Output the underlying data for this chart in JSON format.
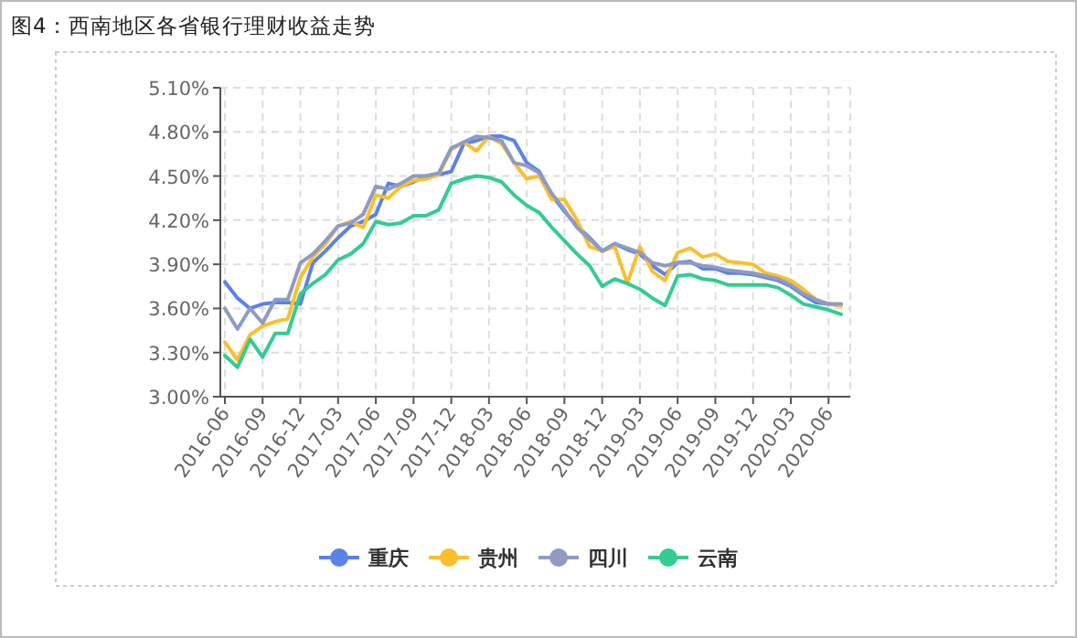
{
  "chart_data": {
    "type": "line",
    "title": "图4：西南地区各省银行理财收益走势",
    "categories": [
      "2016-06",
      null,
      null,
      "2016-09",
      null,
      null,
      "2016-12",
      null,
      null,
      "2017-03",
      null,
      null,
      "2017-06",
      null,
      null,
      "2017-09",
      null,
      null,
      "2017-12",
      null,
      null,
      "2018-03",
      null,
      null,
      "2018-06",
      null,
      null,
      "2018-09",
      null,
      null,
      "2018-12",
      null,
      null,
      "2019-03",
      null,
      null,
      "2019-06",
      null,
      null,
      "2019-09",
      null,
      null,
      "2019-12",
      null,
      null,
      "2020-03",
      null,
      null,
      "2020-06",
      null
    ],
    "series": [
      {
        "name": "重庆",
        "color": "#5b82e8",
        "values": [
          3.78,
          3.67,
          3.6,
          3.63,
          3.64,
          3.64,
          3.63,
          3.91,
          3.99,
          4.08,
          4.16,
          4.19,
          4.24,
          4.45,
          4.43,
          4.46,
          4.5,
          4.51,
          4.53,
          4.72,
          4.74,
          4.77,
          4.77,
          4.74,
          4.59,
          4.53,
          4.37,
          4.26,
          4.16,
          4.08,
          3.99,
          4.04,
          4.0,
          3.97,
          3.89,
          3.83,
          3.91,
          3.92,
          3.87,
          3.87,
          3.84,
          3.84,
          3.83,
          3.81,
          3.79,
          3.75,
          3.69,
          3.64,
          3.63,
          3.62
        ]
      },
      {
        "name": "贵州",
        "color": "#fbbf2c",
        "values": [
          3.37,
          3.25,
          3.42,
          3.48,
          3.51,
          3.53,
          3.81,
          3.95,
          4.04,
          4.16,
          4.19,
          4.15,
          4.37,
          4.35,
          4.43,
          4.47,
          4.48,
          4.51,
          4.68,
          4.73,
          4.67,
          4.77,
          4.72,
          4.59,
          4.48,
          4.5,
          4.34,
          4.34,
          4.2,
          4.02,
          3.99,
          4.02,
          3.77,
          4.02,
          3.85,
          3.79,
          3.98,
          4.01,
          3.95,
          3.97,
          3.92,
          3.91,
          3.9,
          3.84,
          3.82,
          3.79,
          3.73,
          3.66,
          3.63,
          3.62
        ]
      },
      {
        "name": "四川",
        "color": "#8e9bc4",
        "values": [
          3.6,
          3.46,
          3.6,
          3.5,
          3.66,
          3.66,
          3.91,
          3.97,
          4.06,
          4.16,
          4.18,
          4.24,
          4.43,
          4.41,
          4.45,
          4.5,
          4.5,
          4.52,
          4.69,
          4.73,
          4.77,
          4.76,
          4.74,
          4.59,
          4.57,
          4.52,
          4.38,
          4.27,
          4.15,
          4.07,
          3.99,
          4.04,
          4.01,
          3.98,
          3.91,
          3.89,
          3.91,
          3.91,
          3.89,
          3.88,
          3.86,
          3.85,
          3.84,
          3.82,
          3.8,
          3.76,
          3.7,
          3.66,
          3.63,
          3.63
        ]
      },
      {
        "name": "云南",
        "color": "#33cc92",
        "values": [
          3.28,
          3.2,
          3.39,
          3.27,
          3.43,
          3.43,
          3.7,
          3.77,
          3.83,
          3.93,
          3.97,
          4.04,
          4.19,
          4.17,
          4.18,
          4.23,
          4.23,
          4.27,
          4.45,
          4.48,
          4.5,
          4.49,
          4.46,
          4.37,
          4.3,
          4.25,
          4.15,
          4.06,
          3.97,
          3.89,
          3.75,
          3.8,
          3.77,
          3.73,
          3.67,
          3.62,
          3.82,
          3.83,
          3.8,
          3.79,
          3.76,
          3.76,
          3.76,
          3.76,
          3.74,
          3.69,
          3.63,
          3.61,
          3.59,
          3.56
        ]
      }
    ],
    "ylim": [
      3.0,
      5.1
    ],
    "yticks": [
      {
        "value": 3.0,
        "label": "3.00%"
      },
      {
        "value": 3.3,
        "label": "3.30%"
      },
      {
        "value": 3.6,
        "label": "3.60%"
      },
      {
        "value": 3.9,
        "label": "3.90%"
      },
      {
        "value": 4.2,
        "label": "4.20%"
      },
      {
        "value": 4.5,
        "label": "4.50%"
      },
      {
        "value": 4.8,
        "label": "4.80%"
      },
      {
        "value": 5.1,
        "label": "5.10%"
      }
    ],
    "grid": true,
    "legend": "bottom"
  }
}
